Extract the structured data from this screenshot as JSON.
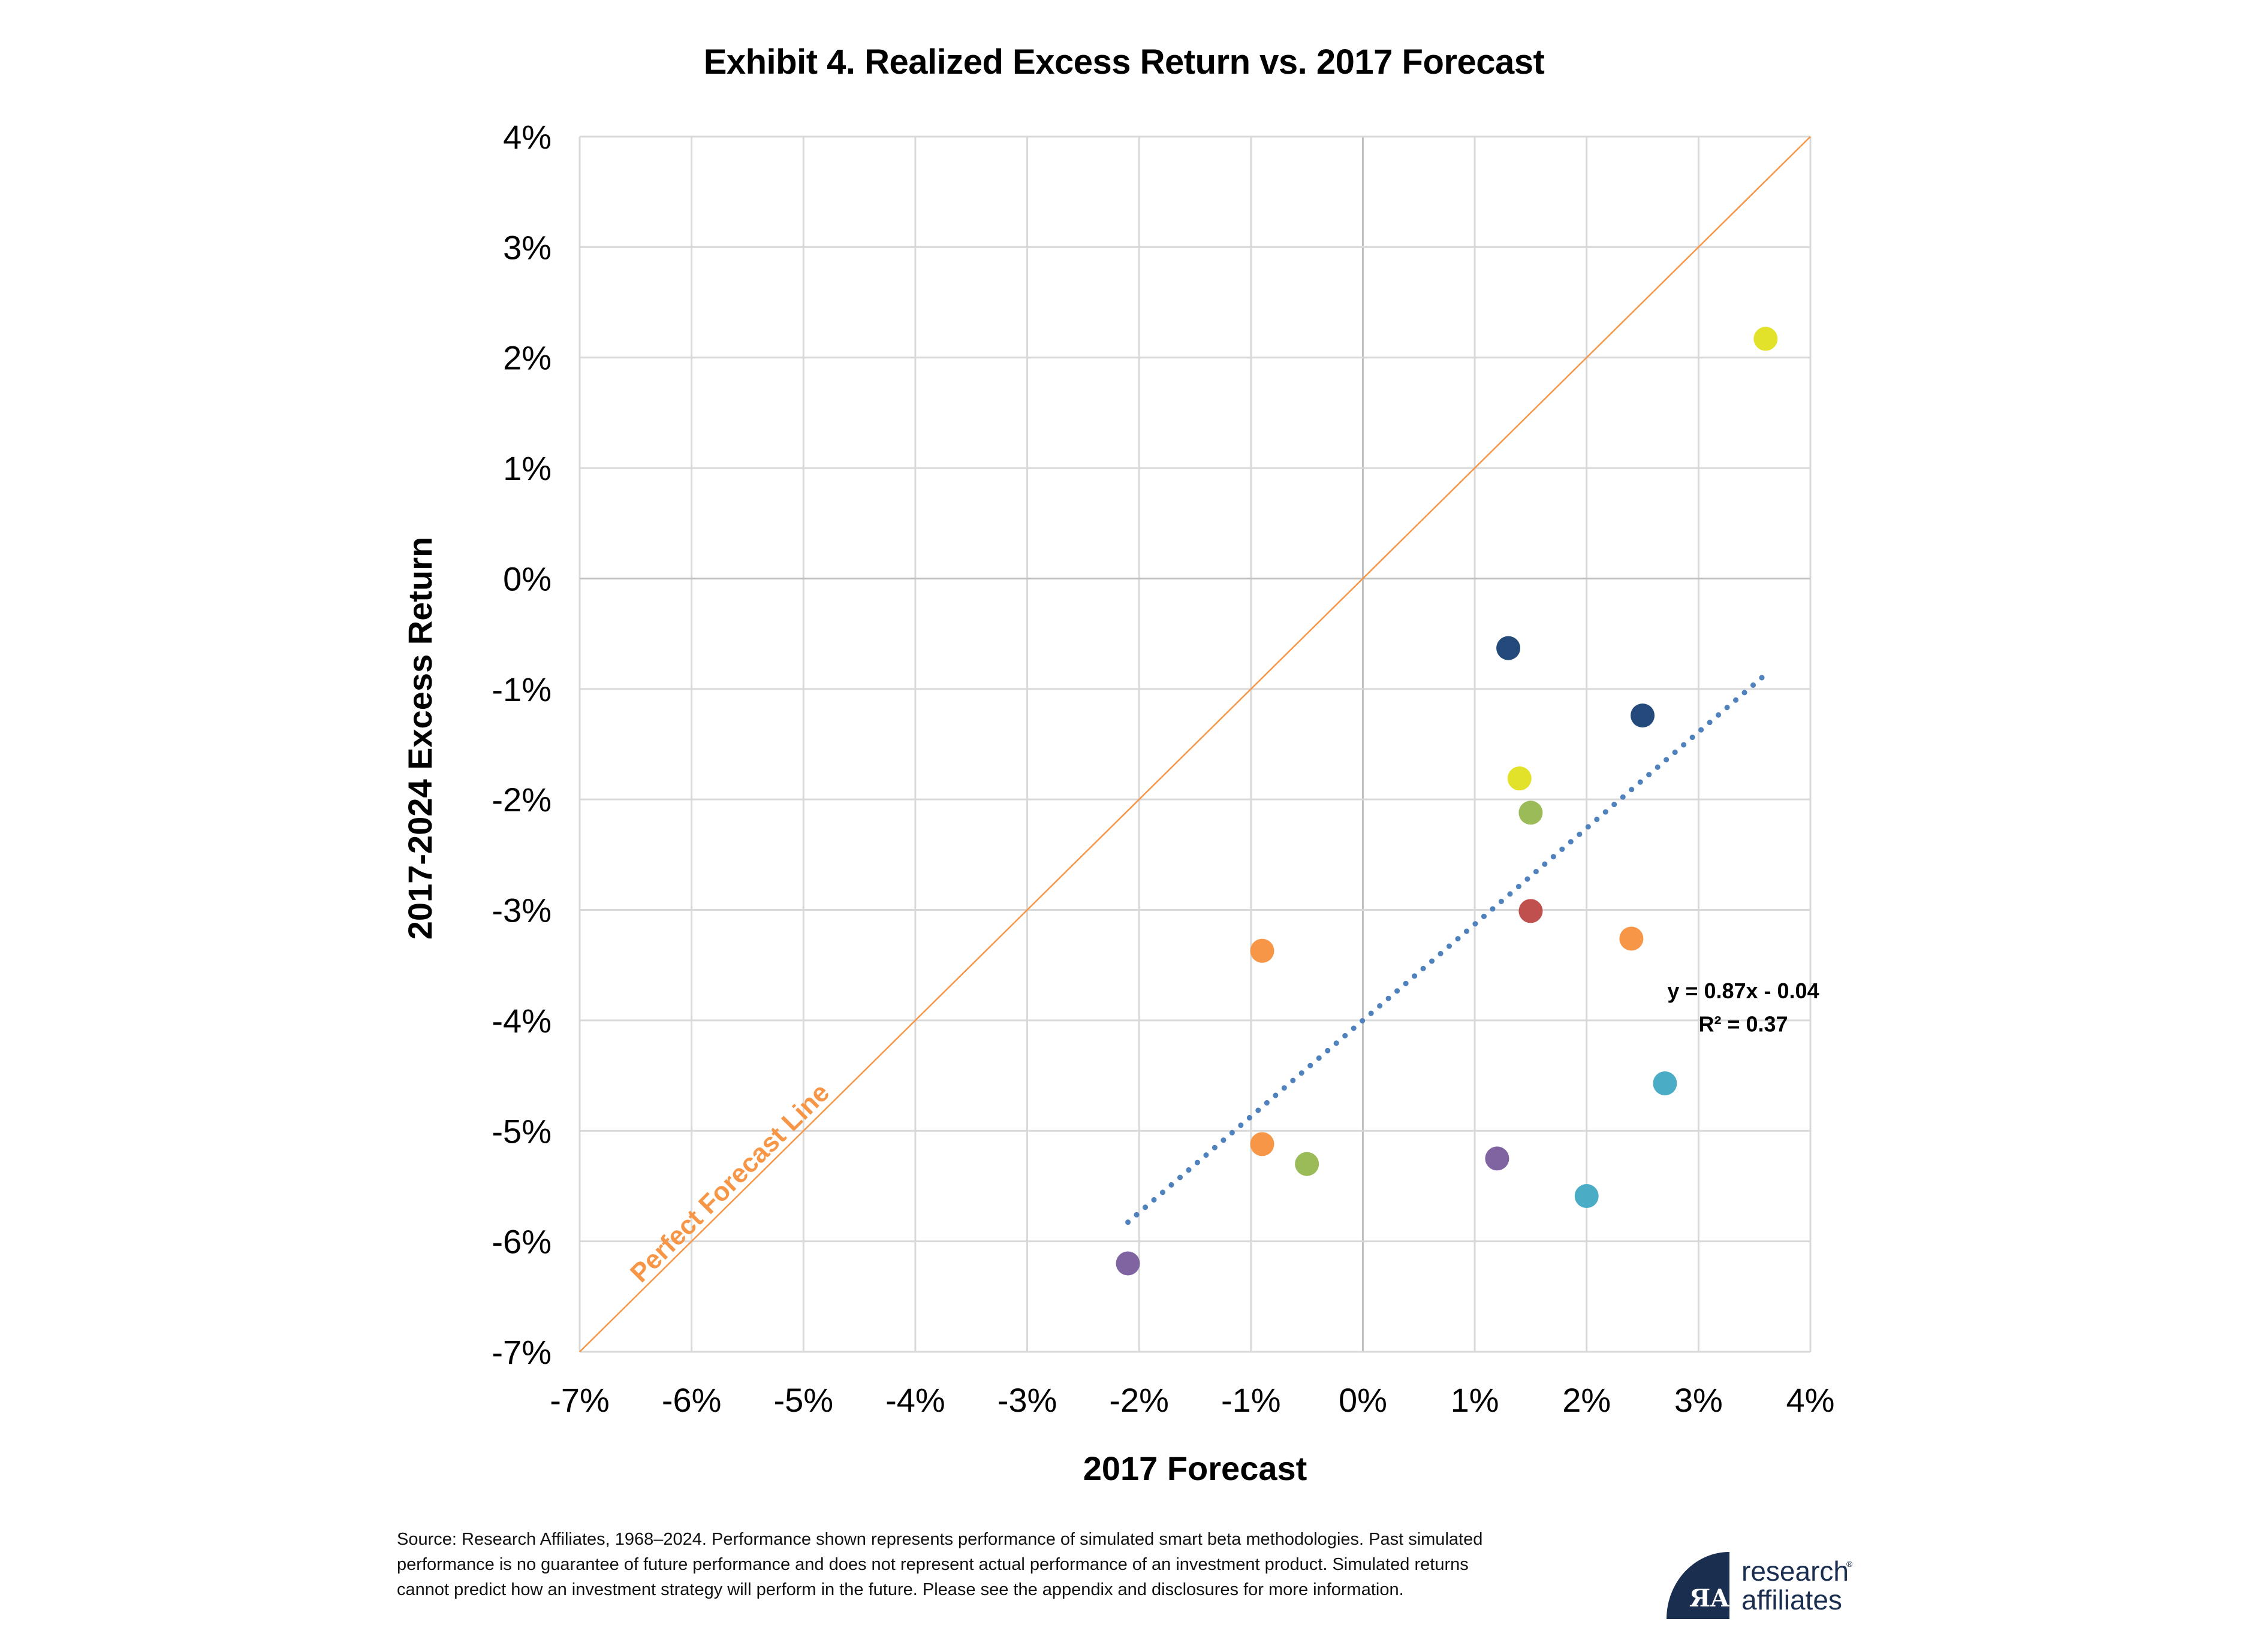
{
  "chart_data": {
    "type": "scatter",
    "title": "Exhibit 4. Realized Excess Return vs. 2017 Forecast",
    "xlabel": "2017 Forecast",
    "ylabel": "2017-2024 Excess Return",
    "xlim": [
      -7,
      4
    ],
    "ylim": [
      -7,
      4
    ],
    "x_ticks": [
      "-7%",
      "-6%",
      "-5%",
      "-4%",
      "-3%",
      "-2%",
      "-1%",
      "0%",
      "1%",
      "2%",
      "3%",
      "4%"
    ],
    "y_ticks": [
      "4%",
      "3%",
      "2%",
      "1%",
      "0%",
      "-1%",
      "-2%",
      "-3%",
      "-4%",
      "-5%",
      "-6%",
      "-7%"
    ],
    "grid": true,
    "legend": "none",
    "points": [
      {
        "x": 3.6,
        "y": 2.17,
        "color": "#e2e22a"
      },
      {
        "x": 1.3,
        "y": -0.63,
        "color": "#234a7b"
      },
      {
        "x": 2.5,
        "y": -1.24,
        "color": "#234a7b"
      },
      {
        "x": 1.4,
        "y": -1.81,
        "color": "#e2e22a"
      },
      {
        "x": 1.5,
        "y": -2.12,
        "color": "#9bbb59"
      },
      {
        "x": 1.5,
        "y": -3.01,
        "color": "#c0504d"
      },
      {
        "x": 2.4,
        "y": -3.26,
        "color": "#f79646"
      },
      {
        "x": -0.9,
        "y": -3.37,
        "color": "#f79646"
      },
      {
        "x": 2.7,
        "y": -4.57,
        "color": "#4bacc6"
      },
      {
        "x": -0.9,
        "y": -5.12,
        "color": "#f79646"
      },
      {
        "x": -0.5,
        "y": -5.3,
        "color": "#9bbb59"
      },
      {
        "x": 1.2,
        "y": -5.25,
        "color": "#8064a2"
      },
      {
        "x": 2.0,
        "y": -5.59,
        "color": "#4bacc6"
      },
      {
        "x": -2.1,
        "y": -6.2,
        "color": "#8064a2"
      }
    ],
    "trendline": {
      "slope": 0.87,
      "intercept": -0.04,
      "x_range": [
        -2.1,
        3.6
      ],
      "equation_label": "y = 0.87x - 0.04",
      "r2_label": "R² = 0.37",
      "color": "#4f81bd",
      "style": "dotted"
    },
    "reference_line": {
      "label": "Perfect Forecast Line",
      "slope": 1,
      "intercept": 0,
      "color": "#f79646"
    }
  },
  "footer": {
    "source_note": "Source: Research Affiliates, 1968–2024. Performance shown represents performance of simulated smart beta methodologies. Past simulated performance is no guarantee of future performance and does not represent actual performance of an investment product. Simulated returns cannot predict how an investment strategy will perform in the future. Please see the appendix and disclosures for more information."
  },
  "logo": {
    "line1": "research",
    "line2": "affiliates",
    "registered": "®",
    "mark": "ЯA"
  },
  "colors": {
    "grid": "#d9d9d9",
    "axis_text": "#000000"
  }
}
